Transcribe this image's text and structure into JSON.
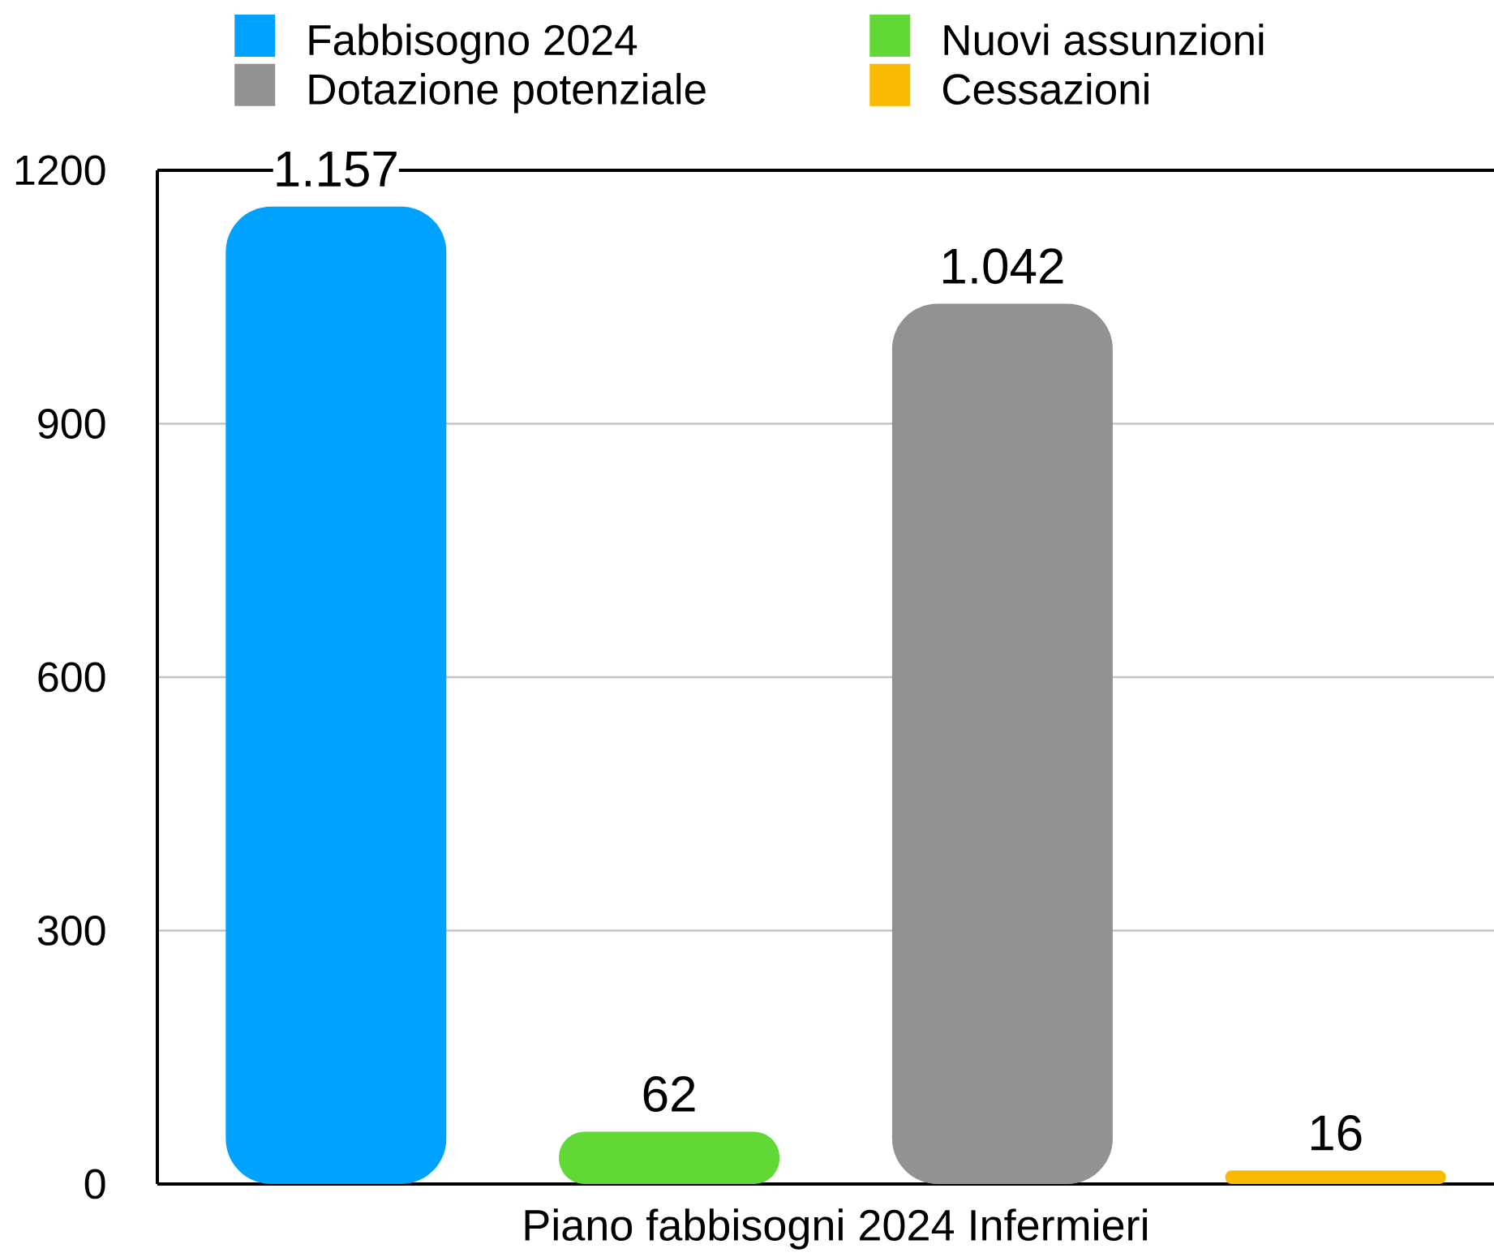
{
  "chart_data": {
    "type": "bar",
    "categories": [
      "Piano fabbisogni 2024 Infermieri"
    ],
    "series": [
      {
        "name": "Fabbisogno 2024",
        "color": "#00a2ff",
        "values": [
          1157
        ],
        "value_labels": [
          "1.157"
        ]
      },
      {
        "name": "Nuovi assunzioni",
        "color": "#61d836",
        "values": [
          62
        ],
        "value_labels": [
          "62"
        ]
      },
      {
        "name": "Dotazione potenziale",
        "color": "#929292",
        "values": [
          1042
        ],
        "value_labels": [
          "1.042"
        ]
      },
      {
        "name": "Cessazioni",
        "color": "#f8ba00",
        "values": [
          16
        ],
        "value_labels": [
          "16"
        ]
      }
    ],
    "ylim": [
      0,
      1200
    ],
    "yticks": [
      0,
      300,
      600,
      900,
      1200
    ],
    "grid": "y",
    "legend": "top"
  }
}
